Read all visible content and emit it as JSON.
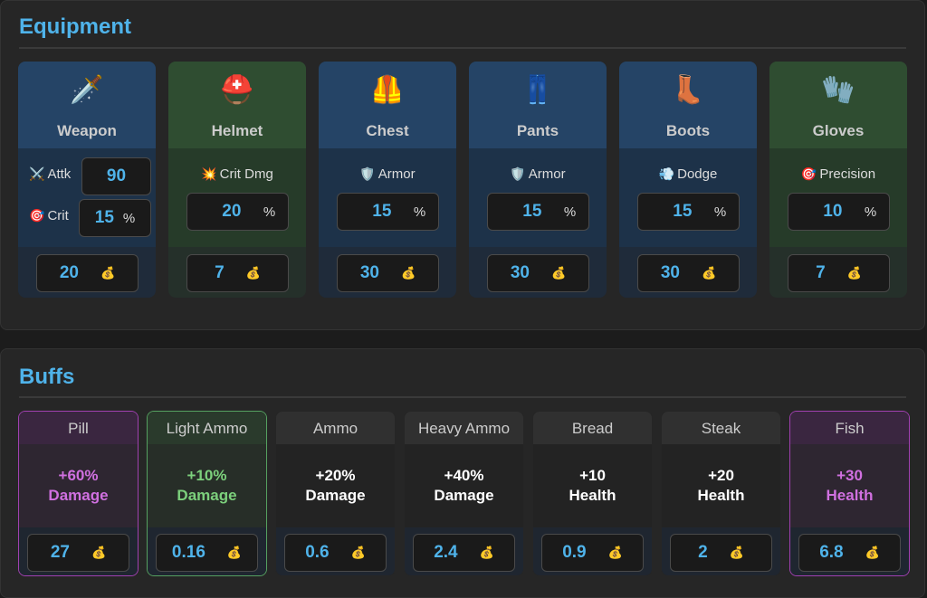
{
  "currency_icon": "💰",
  "equipment": {
    "title": "Equipment",
    "items": [
      {
        "icon": "🗡️",
        "name": "Weapon",
        "theme": "blue",
        "stats": [
          {
            "icon": "⚔️",
            "label": "Attk",
            "value": 90
          },
          {
            "icon": "🎯",
            "label": "Crit",
            "value": 15,
            "unit": "%"
          }
        ],
        "price": 20
      },
      {
        "icon": "⛑️",
        "name": "Helmet",
        "theme": "green",
        "stats": [
          {
            "icon": "💥",
            "label": "Crit Dmg",
            "value": 20,
            "unit": "%"
          }
        ],
        "price": 7
      },
      {
        "icon": "🦺",
        "name": "Chest",
        "theme": "blue",
        "stats": [
          {
            "icon": "🛡️",
            "label": "Armor",
            "value": 15,
            "unit": "%"
          }
        ],
        "price": 30
      },
      {
        "icon": "👖",
        "name": "Pants",
        "theme": "blue",
        "stats": [
          {
            "icon": "🛡️",
            "label": "Armor",
            "value": 15,
            "unit": "%"
          }
        ],
        "price": 30
      },
      {
        "icon": "👢",
        "name": "Boots",
        "theme": "blue",
        "stats": [
          {
            "icon": "💨",
            "label": "Dodge",
            "value": 15,
            "unit": "%"
          }
        ],
        "price": 30
      },
      {
        "icon": "🧤",
        "name": "Gloves",
        "theme": "green",
        "stats": [
          {
            "icon": "🎯",
            "label": "Precision",
            "value": 10,
            "unit": "%"
          }
        ],
        "price": 7
      }
    ]
  },
  "buffs": {
    "title": "Buffs",
    "items": [
      {
        "name": "Pill",
        "effect": "+60%",
        "stat": "Damage",
        "price": 27,
        "theme": "purple"
      },
      {
        "name": "Light Ammo",
        "effect": "+10%",
        "stat": "Damage",
        "price": 0.16,
        "theme": "green"
      },
      {
        "name": "Ammo",
        "effect": "+20%",
        "stat": "Damage",
        "price": 0.6,
        "theme": "neutral"
      },
      {
        "name": "Heavy Ammo",
        "effect": "+40%",
        "stat": "Damage",
        "price": 2.4,
        "theme": "neutral"
      },
      {
        "name": "Bread",
        "effect": "+10",
        "stat": "Health",
        "price": 0.9,
        "theme": "neutral"
      },
      {
        "name": "Steak",
        "effect": "+20",
        "stat": "Health",
        "price": 2,
        "theme": "neutral"
      },
      {
        "name": "Fish",
        "effect": "+30",
        "stat": "Health",
        "price": 6.8,
        "theme": "purple"
      }
    ]
  }
}
